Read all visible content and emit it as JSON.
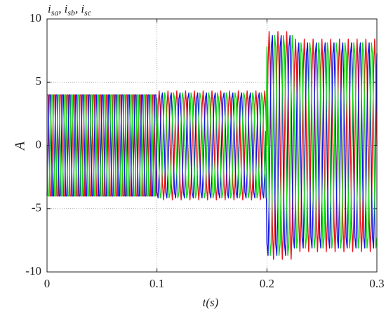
{
  "chart_data": {
    "type": "line",
    "annotation": [
      {
        "main": "i",
        "sub": "sa",
        "after": ","
      },
      {
        "main": "i",
        "sub": "sb",
        "after": ","
      },
      {
        "main": "i",
        "sub": "sc",
        "after": ""
      }
    ],
    "xlabel": "t(s)",
    "ylabel": "A",
    "xlim": [
      0,
      0.3
    ],
    "xticks": [
      0,
      0.1,
      0.2,
      0.3
    ],
    "ylim": [
      -10,
      10
    ],
    "yticks": [
      -10,
      -5,
      0,
      5,
      10
    ],
    "grid": true,
    "x": [
      0,
      0.001,
      0.002,
      0.003,
      0.004,
      0.005,
      0.006,
      0.007,
      0.008,
      0.009,
      0.01,
      0.011,
      0.012,
      0.013,
      0.014,
      0.015,
      0.016,
      0.017,
      0.018,
      0.019,
      0.02,
      0.021,
      0.022,
      0.023,
      0.024,
      0.025,
      0.026,
      0.027,
      0.028,
      0.029,
      0.03,
      0.031,
      0.032,
      0.033,
      0.034,
      0.035,
      0.036,
      0.037,
      0.038,
      0.039,
      0.04,
      0.041,
      0.042,
      0.043,
      0.044,
      0.045,
      0.046,
      0.047,
      0.048,
      0.049,
      0.05,
      0.051,
      0.052,
      0.053,
      0.054,
      0.055,
      0.056,
      0.057,
      0.058,
      0.059,
      0.06,
      0.061,
      0.062,
      0.063,
      0.064,
      0.065,
      0.066,
      0.067,
      0.068,
      0.069,
      0.07,
      0.071,
      0.072,
      0.073,
      0.074,
      0.075,
      0.076,
      0.077,
      0.078,
      0.079,
      0.08,
      0.081,
      0.082,
      0.083,
      0.084,
      0.085,
      0.086,
      0.087,
      0.088,
      0.089,
      0.09,
      0.091,
      0.092,
      0.093,
      0.094,
      0.095,
      0.096,
      0.097,
      0.098,
      0.099,
      0.1,
      0.101,
      0.102,
      0.103,
      0.104,
      0.105,
      0.106,
      0.107,
      0.108,
      0.109,
      0.11,
      0.111,
      0.112,
      0.113,
      0.114,
      0.115,
      0.116,
      0.117,
      0.118,
      0.119,
      0.12,
      0.121,
      0.122,
      0.123,
      0.124,
      0.125,
      0.126,
      0.127,
      0.128,
      0.129,
      0.13,
      0.131,
      0.132,
      0.133,
      0.134,
      0.135,
      0.136,
      0.137,
      0.138,
      0.139,
      0.14,
      0.141,
      0.142,
      0.143,
      0.144,
      0.145,
      0.146,
      0.147,
      0.148,
      0.149,
      0.15,
      0.151,
      0.152,
      0.153,
      0.154,
      0.155,
      0.156,
      0.157,
      0.158,
      0.159,
      0.16,
      0.161,
      0.162,
      0.163,
      0.164,
      0.165,
      0.166,
      0.167,
      0.168,
      0.169,
      0.17,
      0.171,
      0.172,
      0.173,
      0.174,
      0.175,
      0.176,
      0.177,
      0.178,
      0.179,
      0.18,
      0.181,
      0.182,
      0.183,
      0.184,
      0.185,
      0.186,
      0.187,
      0.188,
      0.189,
      0.19,
      0.191,
      0.192,
      0.193,
      0.194,
      0.195,
      0.196,
      0.197,
      0.198,
      0.199,
      0.2,
      0.201,
      0.202,
      0.203,
      0.204,
      0.205,
      0.206,
      0.207,
      0.208,
      0.209,
      0.21,
      0.211,
      0.212,
      0.213,
      0.214,
      0.215,
      0.216,
      0.217,
      0.218,
      0.219,
      0.22,
      0.221,
      0.222,
      0.223,
      0.224,
      0.225,
      0.226,
      0.227,
      0.228,
      0.229,
      0.23,
      0.231,
      0.232,
      0.233,
      0.234,
      0.235,
      0.236,
      0.237,
      0.238,
      0.239,
      0.24,
      0.241,
      0.242,
      0.243,
      0.244,
      0.245,
      0.246,
      0.247,
      0.248,
      0.249,
      0.25,
      0.251,
      0.252,
      0.253,
      0.254,
      0.255,
      0.256,
      0.257,
      0.258,
      0.259,
      0.26,
      0.261,
      0.262,
      0.263,
      0.264,
      0.265,
      0.266,
      0.267,
      0.268,
      0.269,
      0.27,
      0.271,
      0.272,
      0.273,
      0.274,
      0.275,
      0.276,
      0.277,
      0.278,
      0.279,
      0.28,
      0.281,
      0.282,
      0.283,
      0.284,
      0.285,
      0.286,
      0.287,
      0.288,
      0.289,
      0.29,
      0.291,
      0.292,
      0.293,
      0.294,
      0.295,
      0.296,
      0.297,
      0.298,
      0.299,
      0.3
    ],
    "series": [
      {
        "color": "#e8141c",
        "values": [
          4,
          4,
          0,
          -4,
          -4,
          0,
          4,
          4,
          0,
          -4,
          -4,
          0,
          4,
          4,
          0,
          -4,
          -4,
          0,
          4,
          4,
          0,
          -4,
          -4,
          0,
          4,
          4,
          0,
          -4,
          -4,
          0,
          4,
          4,
          0,
          -4,
          -4,
          0,
          4,
          4,
          0,
          -4,
          -4,
          0,
          4,
          4,
          0,
          -4,
          -4,
          0,
          4,
          4,
          0,
          -4,
          -4,
          0,
          4,
          4,
          0,
          -4,
          -4,
          0,
          4,
          4,
          0,
          -4,
          -4,
          0,
          4,
          4,
          0,
          -4,
          -4,
          0,
          4,
          4,
          0,
          -4,
          -4,
          0,
          4,
          4,
          0,
          -4,
          -4,
          0,
          4,
          4,
          0,
          -4,
          -4,
          0,
          4,
          4,
          0,
          -4,
          -4,
          0,
          4,
          4,
          0,
          -4,
          0,
          3.04,
          4.3,
          3.04,
          0,
          -3.04,
          -4.3,
          -3.04,
          0,
          3.04,
          4.3,
          3.04,
          0,
          -3.04,
          -4.3,
          -3.04,
          0,
          3.04,
          4.3,
          3.04,
          0,
          -3.04,
          -4.3,
          -3.04,
          0,
          3.04,
          4.3,
          3.04,
          0,
          -3.04,
          -4.3,
          -3.04,
          0,
          3.04,
          4.3,
          3.04,
          0,
          -3.04,
          -4.3,
          -3.04,
          0,
          3.04,
          4.3,
          3.04,
          0,
          -3.04,
          -4.3,
          -3.04,
          0,
          3.04,
          4.3,
          3.04,
          0,
          -3.04,
          -4.3,
          -3.04,
          0,
          3.04,
          4.3,
          3.04,
          0,
          -3.04,
          -4.3,
          -3.04,
          0,
          3.04,
          4.3,
          3.04,
          0,
          -3.04,
          -4.3,
          -3.04,
          0,
          3.04,
          4.3,
          3.04,
          0,
          -3.04,
          -4.3,
          -3.04,
          0,
          3.04,
          4.3,
          3.04,
          0,
          -3.04,
          -4.3,
          -3.04,
          0,
          3.04,
          4.3,
          3.04,
          0,
          -3.04,
          -4.3,
          -3.04,
          0,
          3.04,
          4.3,
          3.04,
          0,
          6.36,
          9,
          6.36,
          0,
          -6.36,
          -9,
          -6.36,
          0,
          6.36,
          9,
          6.36,
          0,
          -6.36,
          -9,
          -6.36,
          0,
          6.36,
          9,
          6.36,
          0,
          -6.36,
          -9,
          -6.36,
          0,
          5.94,
          8.4,
          5.94,
          0,
          -5.94,
          -8.4,
          -5.94,
          0,
          5.94,
          8.4,
          5.94,
          0,
          -5.94,
          -8.4,
          -5.94,
          0,
          5.94,
          8.4,
          5.94,
          0,
          -5.94,
          -8.4,
          -5.94,
          0,
          5.94,
          8.4,
          5.94,
          0,
          -5.94,
          -8.4,
          -5.94,
          0,
          5.94,
          8.4,
          5.94,
          0,
          -5.94,
          -8.4,
          -5.94,
          0,
          5.94,
          8.4,
          5.94,
          0,
          -5.94,
          -8.4,
          -5.94,
          0,
          5.94,
          8.4,
          5.94,
          0,
          -5.94,
          -8.4,
          -5.94,
          0,
          5.94,
          8.4,
          5.94,
          0,
          -5.94,
          -8.4,
          -5.94,
          0,
          5.94,
          8.4,
          5.94,
          0,
          -5.94,
          -8.4,
          -5.94,
          0,
          5.94,
          8.4,
          5.94,
          0
        ]
      },
      {
        "color": "#1414e0",
        "values": [
          -4,
          0,
          4,
          4,
          0,
          -4,
          -4,
          0,
          4,
          4,
          0,
          -4,
          -4,
          0,
          4,
          4,
          0,
          -4,
          -4,
          0,
          4,
          4,
          0,
          -4,
          -4,
          0,
          4,
          4,
          0,
          -4,
          -4,
          0,
          4,
          4,
          0,
          -4,
          -4,
          0,
          4,
          4,
          0,
          -4,
          -4,
          0,
          4,
          4,
          0,
          -4,
          -4,
          0,
          4,
          4,
          0,
          -4,
          -4,
          0,
          4,
          4,
          0,
          -4,
          -4,
          0,
          4,
          4,
          0,
          -4,
          -4,
          0,
          4,
          4,
          0,
          -4,
          -4,
          0,
          4,
          4,
          0,
          -4,
          -4,
          0,
          4,
          4,
          0,
          -4,
          -4,
          0,
          4,
          4,
          0,
          -4,
          -4,
          0,
          4,
          4,
          0,
          -4,
          -4,
          0,
          4,
          4,
          -3.72,
          -4.15,
          -2.15,
          1.11,
          3.72,
          4.15,
          2.15,
          -1.11,
          -3.72,
          -4.15,
          -2.15,
          1.11,
          3.72,
          4.15,
          2.15,
          -1.11,
          -3.72,
          -4.15,
          -2.15,
          1.11,
          3.72,
          4.15,
          2.15,
          -1.11,
          -3.72,
          -4.15,
          -2.15,
          1.11,
          3.72,
          4.15,
          2.15,
          -1.11,
          -3.72,
          -4.15,
          -2.15,
          1.11,
          3.72,
          4.15,
          2.15,
          -1.11,
          -3.72,
          -4.15,
          -2.15,
          1.11,
          3.72,
          4.15,
          2.15,
          -1.11,
          -3.72,
          -4.15,
          -2.15,
          1.11,
          3.72,
          4.15,
          2.15,
          -1.11,
          -3.72,
          -4.15,
          -2.15,
          1.11,
          3.72,
          4.15,
          2.15,
          -1.11,
          -3.72,
          -4.15,
          -2.15,
          1.11,
          3.72,
          4.15,
          2.15,
          -1.11,
          -3.72,
          -4.15,
          -2.15,
          1.11,
          3.72,
          4.15,
          2.15,
          -1.11,
          -3.72,
          -4.15,
          -2.15,
          1.11,
          3.72,
          4.15,
          2.15,
          -1.11,
          -3.72,
          -4.15,
          -2.15,
          1.11,
          3.72,
          4.15,
          2.15,
          -1.11,
          -3.72,
          -4.15,
          -2.15,
          1.11,
          -7.79,
          -8.69,
          -4.5,
          2.33,
          7.79,
          8.69,
          4.5,
          -2.33,
          -7.79,
          -8.69,
          -4.5,
          2.33,
          7.79,
          8.69,
          4.5,
          -2.33,
          -7.79,
          -8.69,
          -4.5,
          2.33,
          7.79,
          8.69,
          4.5,
          -2.33,
          -7.27,
          -8.11,
          -4.2,
          2.18,
          7.27,
          8.11,
          4.2,
          -2.18,
          -7.27,
          -8.11,
          -4.2,
          2.18,
          7.27,
          8.11,
          4.2,
          -2.18,
          -7.27,
          -8.11,
          -4.2,
          2.18,
          7.27,
          8.11,
          4.2,
          -2.18,
          -7.27,
          -8.11,
          -4.2,
          2.18,
          7.27,
          8.11,
          4.2,
          -2.18,
          -7.27,
          -8.11,
          -4.2,
          2.18,
          7.27,
          8.11,
          4.2,
          -2.18,
          -7.27,
          -8.11,
          -4.2,
          2.18,
          7.27,
          8.11,
          4.2,
          -2.18,
          -7.27,
          -8.11,
          -4.2,
          2.18,
          7.27,
          8.11,
          4.2,
          -2.18,
          -7.27,
          -8.11,
          -4.2,
          2.18,
          7.27,
          8.11,
          4.2,
          -2.18,
          -7.27,
          -8.11,
          -4.2,
          2.18,
          7.27,
          8.11,
          4.2,
          -2.18,
          -7.27,
          -8.11,
          -4.2,
          2.18,
          7.27
        ]
      },
      {
        "color": "#14d814",
        "values": [
          0,
          -4,
          -4,
          0,
          4,
          4,
          0,
          -4,
          -4,
          0,
          4,
          4,
          0,
          -4,
          -4,
          0,
          4,
          4,
          0,
          -4,
          -4,
          0,
          4,
          4,
          0,
          -4,
          -4,
          0,
          4,
          4,
          0,
          -4,
          -4,
          0,
          4,
          4,
          0,
          -4,
          -4,
          0,
          4,
          4,
          0,
          -4,
          -4,
          0,
          4,
          4,
          0,
          -4,
          -4,
          0,
          4,
          4,
          0,
          -4,
          -4,
          0,
          4,
          4,
          0,
          -4,
          -4,
          0,
          4,
          4,
          0,
          -4,
          -4,
          0,
          4,
          4,
          0,
          -4,
          -4,
          0,
          4,
          4,
          0,
          -4,
          -4,
          0,
          4,
          4,
          0,
          -4,
          -4,
          0,
          4,
          4,
          0,
          -4,
          -4,
          0,
          4,
          4,
          0,
          -4,
          -4,
          0,
          3.72,
          1.11,
          -2.15,
          -4.15,
          -3.72,
          -1.11,
          2.15,
          4.15,
          3.72,
          1.11,
          -2.15,
          -4.15,
          -3.72,
          -1.11,
          2.15,
          4.15,
          3.72,
          1.11,
          -2.15,
          -4.15,
          -3.72,
          -1.11,
          2.15,
          4.15,
          3.72,
          1.11,
          -2.15,
          -4.15,
          -3.72,
          -1.11,
          2.15,
          4.15,
          3.72,
          1.11,
          -2.15,
          -4.15,
          -3.72,
          -1.11,
          2.15,
          4.15,
          3.72,
          1.11,
          -2.15,
          -4.15,
          -3.72,
          -1.11,
          2.15,
          4.15,
          3.72,
          1.11,
          -2.15,
          -4.15,
          -3.72,
          -1.11,
          2.15,
          4.15,
          3.72,
          1.11,
          -2.15,
          -4.15,
          -3.72,
          -1.11,
          2.15,
          4.15,
          3.72,
          1.11,
          -2.15,
          -4.15,
          -3.72,
          -1.11,
          2.15,
          4.15,
          3.72,
          1.11,
          -2.15,
          -4.15,
          -3.72,
          -1.11,
          2.15,
          4.15,
          3.72,
          1.11,
          -2.15,
          -4.15,
          -3.72,
          -1.11,
          2.15,
          4.15,
          3.72,
          1.11,
          -2.15,
          -4.15,
          -3.72,
          -1.11,
          2.15,
          4.15,
          3.72,
          1.11,
          -2.15,
          -4.15,
          7.79,
          2.33,
          -4.5,
          -8.69,
          -7.79,
          -2.33,
          4.5,
          8.69,
          7.79,
          2.33,
          -4.5,
          -8.69,
          -7.79,
          -2.33,
          4.5,
          8.69,
          7.79,
          2.33,
          -4.5,
          -8.69,
          -7.79,
          -2.33,
          4.5,
          8.69,
          7.27,
          2.18,
          -4.2,
          -8.11,
          -7.27,
          -2.18,
          4.2,
          8.11,
          7.27,
          2.18,
          -4.2,
          -8.11,
          -7.27,
          -2.18,
          4.2,
          8.11,
          7.27,
          2.18,
          -4.2,
          -8.11,
          -7.27,
          -2.18,
          4.2,
          8.11,
          7.27,
          2.18,
          -4.2,
          -8.11,
          -7.27,
          -2.18,
          4.2,
          8.11,
          7.27,
          2.18,
          -4.2,
          -8.11,
          -7.27,
          -2.18,
          4.2,
          8.11,
          7.27,
          2.18,
          -4.2,
          -8.11,
          -7.27,
          -2.18,
          4.2,
          8.11,
          7.27,
          2.18,
          -4.2,
          -8.11,
          -7.27,
          -2.18,
          4.2,
          8.11,
          7.27,
          2.18,
          -4.2,
          -8.11,
          -7.27,
          -2.18,
          4.2,
          8.11,
          7.27,
          2.18,
          -4.2,
          -8.11,
          -7.27,
          -2.18,
          4.2,
          8.11,
          7.27,
          2.18,
          -4.2,
          -8.11,
          -7.27
        ]
      }
    ]
  }
}
